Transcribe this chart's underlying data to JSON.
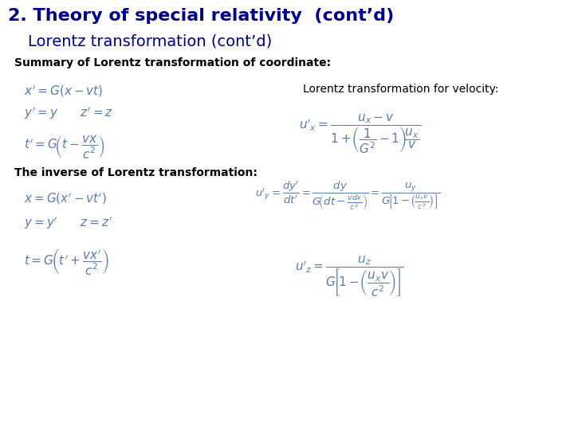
{
  "title": "2. Theory of special relativity  (cont’d)",
  "subtitle": "Lorentz transformation (cont’d)",
  "title_color": "#00008B",
  "subtitle_color": "#00008B",
  "title_fontsize": 16,
  "subtitle_fontsize": 14,
  "bg_color": "#ffffff",
  "summary_label": "Summary of Lorentz transformation of coordinate:",
  "inverse_label": "The inverse of Lorentz transformation:",
  "velocity_label": "Lorentz transformation for velocity:",
  "math_color": "#5B7BAE",
  "text_color": "#000000",
  "label_fontsize": 10,
  "math_fontsize": 11
}
